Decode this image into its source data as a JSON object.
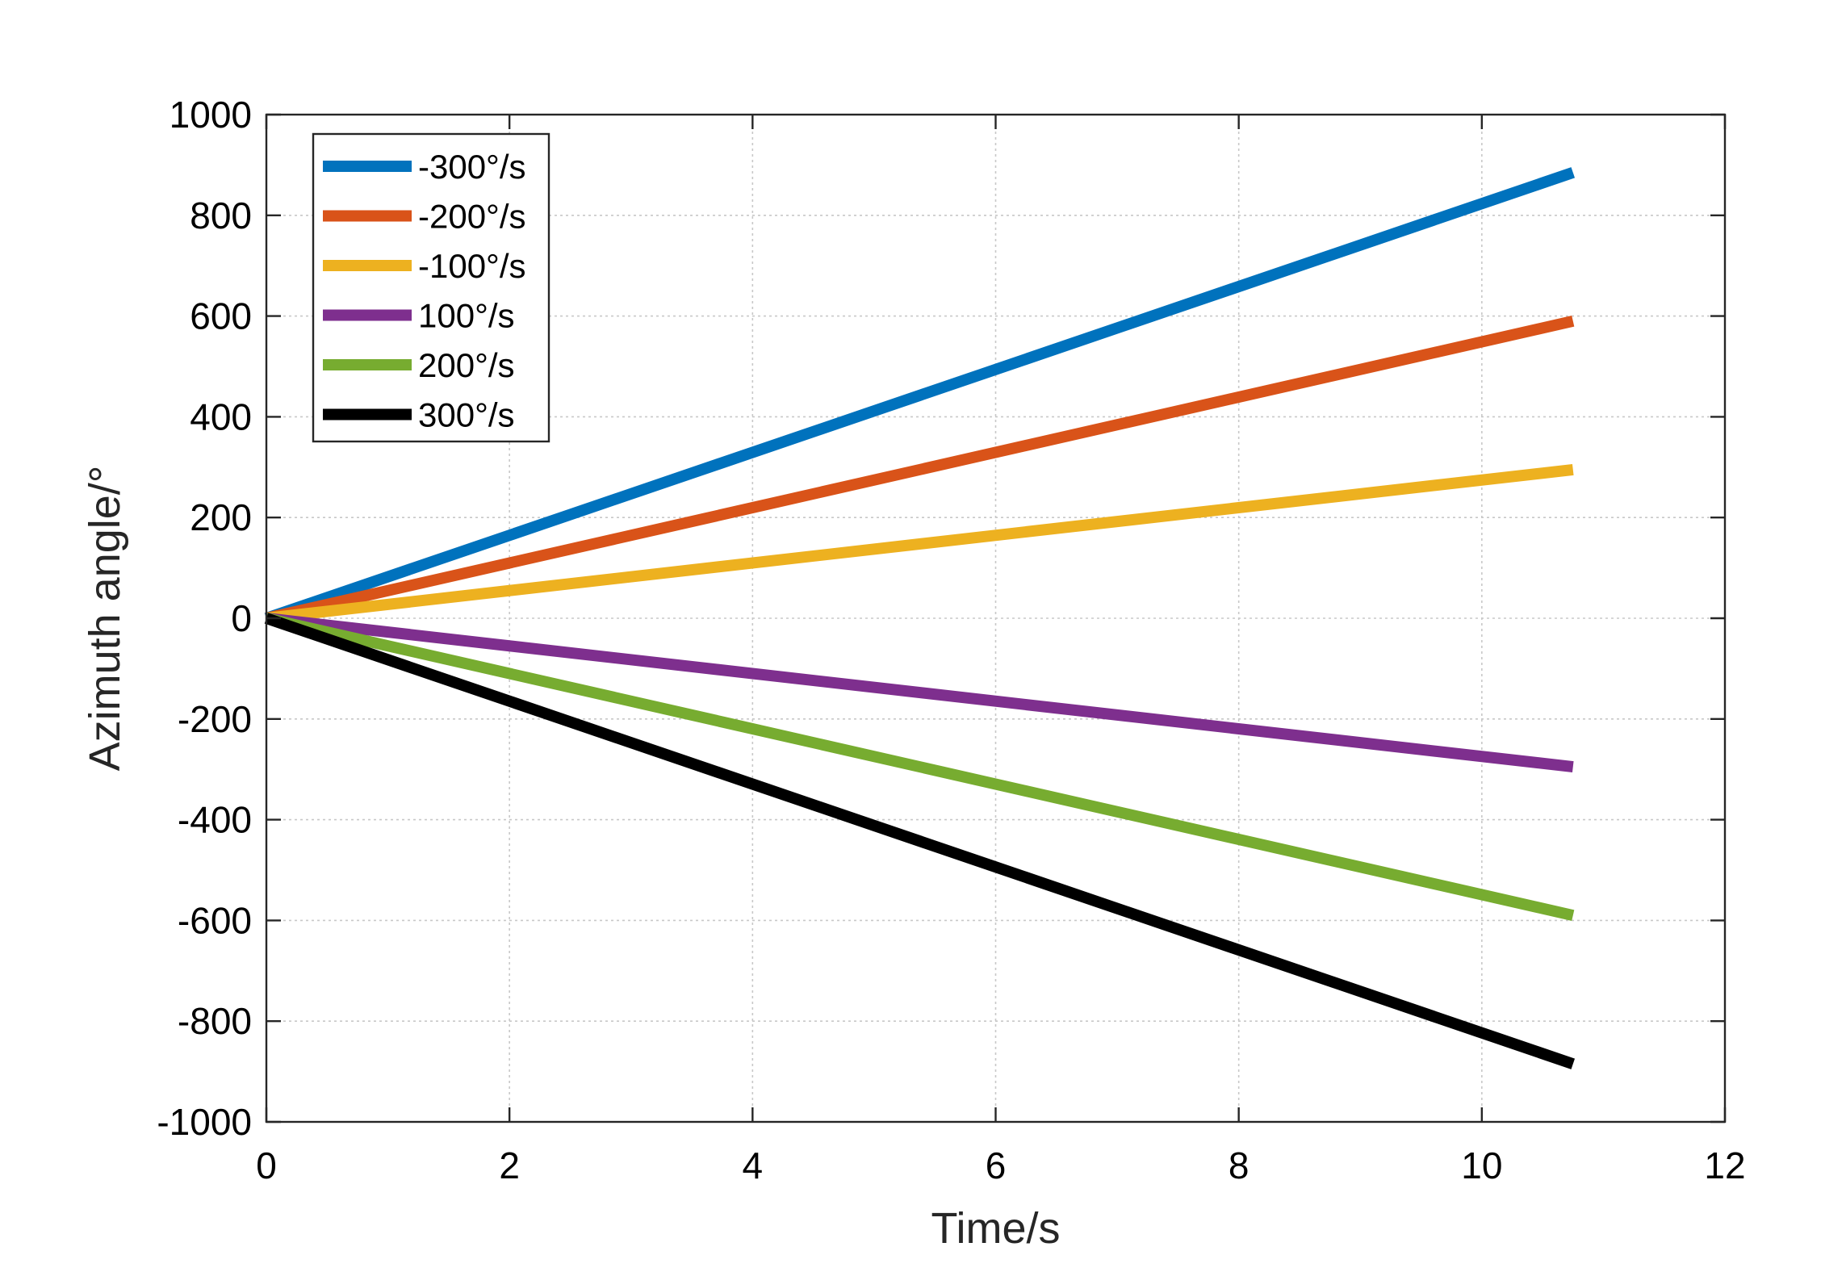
{
  "chart_data": {
    "type": "line",
    "title": "",
    "xlabel": "Time/s",
    "ylabel": "Azimuth angle/°",
    "xlim": [
      0,
      12
    ],
    "ylim": [
      -1000,
      1000
    ],
    "xticks": [
      0,
      2,
      4,
      6,
      8,
      10,
      12
    ],
    "yticks": [
      -1000,
      -800,
      -600,
      -400,
      -200,
      0,
      200,
      400,
      600,
      800,
      1000
    ],
    "xtick_labels": [
      "0",
      "2",
      "4",
      "6",
      "8",
      "10",
      "12"
    ],
    "ytick_labels": [
      "-1000",
      "-800",
      "-600",
      "-400",
      "-200",
      "0",
      "200",
      "400",
      "600",
      "800",
      "1000"
    ],
    "grid": true,
    "legend_position": "top-left",
    "series": [
      {
        "name": "-300°/s",
        "color": "#0072BD",
        "x": [
          0,
          10.75
        ],
        "y": [
          0,
          885
        ]
      },
      {
        "name": "-200°/s",
        "color": "#D95319",
        "x": [
          0,
          10.75
        ],
        "y": [
          0,
          590
        ]
      },
      {
        "name": "-100°/s",
        "color": "#EDB120",
        "x": [
          0,
          10.75
        ],
        "y": [
          0,
          295
        ]
      },
      {
        "name": "100°/s",
        "color": "#7E2F8E",
        "x": [
          0,
          10.75
        ],
        "y": [
          0,
          -295
        ]
      },
      {
        "name": "200°/s",
        "color": "#77AC30",
        "x": [
          0,
          10.75
        ],
        "y": [
          0,
          -590
        ]
      },
      {
        "name": "300°/s",
        "color": "#000000",
        "x": [
          0,
          10.75
        ],
        "y": [
          0,
          -885
        ]
      }
    ]
  }
}
